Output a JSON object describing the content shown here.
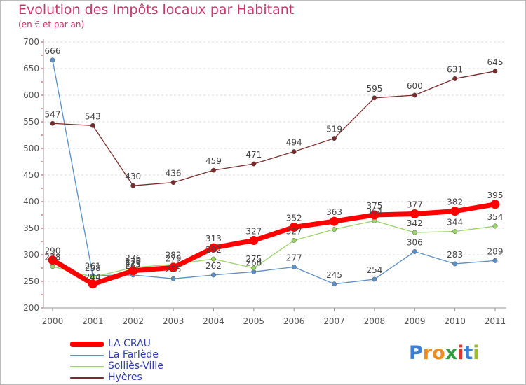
{
  "title": "Evolution des Impôts locaux par Habitant",
  "subtitle": "(en € et par an)",
  "logo": {
    "letters": [
      "P",
      "r",
      "o",
      "x",
      "i",
      "t",
      "i"
    ],
    "colors": [
      "#3a7fd5",
      "#f08c1e",
      "#f08c1e",
      "#2e9e3f",
      "#d93a2b",
      "#3a7fd5",
      "#9bbd2c"
    ]
  },
  "chart_data": {
    "type": "line",
    "x": [
      "2000",
      "2001",
      "2002",
      "2003",
      "2004",
      "2005",
      "2006",
      "2007",
      "2008",
      "2009",
      "2010",
      "2011"
    ],
    "ylim": [
      200,
      700
    ],
    "yticks": [
      "200",
      "250",
      "300",
      "350",
      "400",
      "450",
      "500",
      "550",
      "600",
      "650",
      "700"
    ],
    "grid": "horizontal dashed",
    "series": [
      {
        "name": "LA CRAU",
        "color": "#ff0000",
        "values": [
          290,
          245,
          270,
          276,
          313,
          327,
          352,
          363,
          375,
          377,
          382,
          395
        ],
        "labels": [
          "290",
          "",
          "270",
          "",
          "313",
          "327",
          "352",
          "363",
          "375",
          "377",
          "382",
          "395"
        ]
      },
      {
        "name": "La Farlède",
        "color": "#5a8fc7",
        "values": [
          666,
          261,
          262,
          255,
          262,
          268,
          277,
          245,
          254,
          306,
          283,
          289
        ],
        "labels": [
          "666",
          "261",
          "262",
          "255",
          "262",
          "268",
          "277",
          "245",
          "254",
          "306",
          "283",
          "289"
        ]
      },
      {
        "name": "Solliès-Ville",
        "color": "#9ad36a",
        "values": [
          278,
          258,
          276,
          282,
          292,
          275,
          327,
          348,
          364,
          342,
          344,
          354
        ],
        "labels": [
          "278",
          "258",
          "276",
          "282",
          "292",
          "275",
          "327",
          "",
          "364",
          "342",
          "344",
          "354"
        ]
      },
      {
        "name": "Hyères",
        "color": "#7a2a2a",
        "values": [
          547,
          543,
          430,
          436,
          459,
          471,
          494,
          519,
          595,
          600,
          631,
          645
        ],
        "labels": [
          "547",
          "543",
          "430",
          "436",
          "459",
          "471",
          "494",
          "519",
          "595",
          "600",
          "631",
          "645"
        ]
      }
    ],
    "extra_labels": [
      "244",
      "273",
      "279"
    ]
  }
}
